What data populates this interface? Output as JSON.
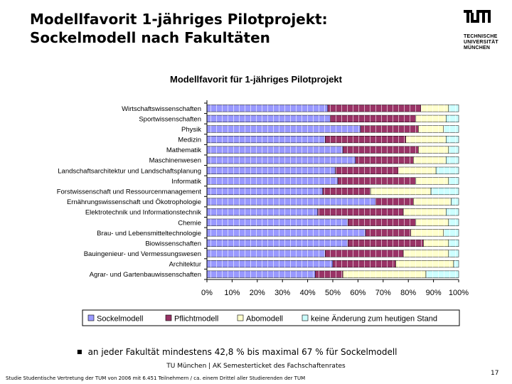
{
  "slide": {
    "title_line1": "Modellfavorit 1-jähriges Pilotprojekt:",
    "title_line2": "Sockelmodell nach Fakultäten",
    "logo_line1": "TECHNISCHE",
    "logo_line2": "UNIVERSITÄT",
    "logo_line3": "MÜNCHEN",
    "bullet": "an jeder Fakultät mindestens 42,8 % bis maximal 67 % für Sockelmodell",
    "footer": "TU München | AK Semesterticket des Fachschaftenrates",
    "page_number": "17",
    "footnote": "Studie Studentische Vertretung der TUM von 2006 mit 6.451 Teilnehmern / ca. einem Drittel aller Studierenden der TUM"
  },
  "chart_data": {
    "type": "bar",
    "orientation": "horizontal",
    "stacked": "percent",
    "title": "Modellfavorit für 1-jähriges Pilotprojekt",
    "categories": [
      "Wirtschaftswissenschaften",
      "Sportwissenschaften",
      "Physik",
      "Medizin",
      "Mathematik",
      "Maschinenwesen",
      "Landschaftsarchitektur und Landschaftsplanung",
      "Informatik",
      "Forstwissenschaft und Ressourcenmanagement",
      "Ernährungswissenschaft und Ökotrophologie",
      "Elektrotechnik und Informationstechnik",
      "Chemie",
      "Brau- und Lebensmitteltechnologie",
      "Biowissenschaften",
      "Bauingenieur- und Vermessungswesen",
      "Architektur",
      "Agrar- und Gartenbauwissenschaften"
    ],
    "series": [
      {
        "name": "Sockelmodell",
        "color": "#9999ff",
        "values": [
          48,
          49,
          61,
          47,
          54,
          59,
          51,
          52,
          46,
          67,
          44,
          56,
          63,
          56,
          47,
          50,
          43
        ]
      },
      {
        "name": "Pflichtmodell",
        "color": "#993366",
        "values": [
          37,
          34,
          23,
          32,
          30,
          23,
          25,
          31,
          19,
          15,
          34,
          27,
          18,
          30,
          31,
          25,
          11
        ]
      },
      {
        "name": "Abomodell",
        "color": "#ffffcc",
        "values": [
          11,
          12,
          10,
          16,
          12,
          13,
          15,
          13,
          24,
          15,
          17,
          13,
          13,
          10,
          18,
          23,
          33
        ]
      },
      {
        "name": "keine Änderung zum heutigen Stand",
        "color": "#ccffff",
        "values": [
          4,
          5,
          6,
          5,
          4,
          5,
          9,
          4,
          11,
          3,
          5,
          4,
          6,
          4,
          4,
          2,
          13
        ]
      }
    ],
    "xlim": [
      0,
      100
    ],
    "x_ticks": [
      "0%",
      "10%",
      "20%",
      "30%",
      "40%",
      "50%",
      "60%",
      "70%",
      "80%",
      "90%",
      "100%"
    ],
    "grid": false,
    "legend_position": "bottom"
  }
}
